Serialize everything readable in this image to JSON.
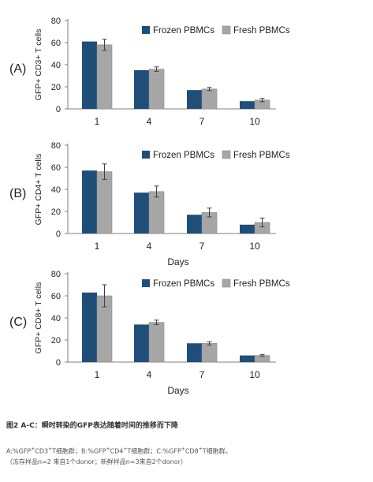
{
  "colors": {
    "frozen": "#1f4e79",
    "fresh": "#a6a6a6",
    "error": "#404040",
    "axis": "#7f7f7f"
  },
  "chart_data": [
    {
      "type": "bar",
      "panel_label": "(A)",
      "categories": [
        "1",
        "4",
        "7",
        "10"
      ],
      "series": [
        {
          "name": "Frozen PBMCs",
          "values": [
            61,
            35,
            17,
            7
          ]
        },
        {
          "name": "Fresh PBMCs",
          "values": [
            58,
            36,
            18,
            8
          ],
          "errors": [
            5,
            2,
            1.5,
            1.5
          ]
        }
      ],
      "xlabel": "",
      "ylabel": "GFP+ CD3+ T cells",
      "ylim": [
        0,
        80
      ],
      "yticks": [
        0,
        20,
        40,
        60,
        80
      ],
      "legend": "top-right"
    },
    {
      "type": "bar",
      "panel_label": "(B)",
      "categories": [
        "1",
        "4",
        "7",
        "10"
      ],
      "series": [
        {
          "name": "Frozen PBMCs",
          "values": [
            57,
            37,
            17,
            8
          ]
        },
        {
          "name": "Fresh PBMCs",
          "values": [
            56,
            38,
            19,
            10
          ],
          "errors": [
            7,
            5,
            4,
            4
          ]
        }
      ],
      "xlabel": "Days",
      "ylabel": "GFP+ CD4+ T cells",
      "ylim": [
        0,
        80
      ],
      "yticks": [
        0,
        20,
        40,
        60,
        80
      ],
      "legend": "top-right"
    },
    {
      "type": "bar",
      "panel_label": "(C)",
      "categories": [
        "1",
        "4",
        "7",
        "10"
      ],
      "series": [
        {
          "name": "Frozen PBMCs",
          "values": [
            63,
            34,
            17,
            6
          ]
        },
        {
          "name": "Fresh PBMCs",
          "values": [
            60,
            36,
            17,
            6
          ],
          "errors": [
            10,
            2,
            1.5,
            0.8
          ]
        }
      ],
      "xlabel": "Days",
      "ylabel": "GFP+ CD8+ T cells",
      "ylim": [
        0,
        80
      ],
      "yticks": [
        0,
        20,
        40,
        60,
        80
      ],
      "legend": "top-right"
    }
  ],
  "caption": {
    "title": "图2 A-C：瞬时转染的GFP表达随着时间的推移而下降",
    "line1": {
      "a": "A:%GFP",
      "b": "CD3",
      "c": "T细胞群；B:%GFP",
      "d": "CD4",
      "e": "T细胞群；C:%GFP",
      "f": "CD8",
      "g": "T细胞群。",
      "sup": "+"
    },
    "line2": "（冻存样品n=2 来自1个donor；新鲜样品n=3来自2个donor）"
  }
}
